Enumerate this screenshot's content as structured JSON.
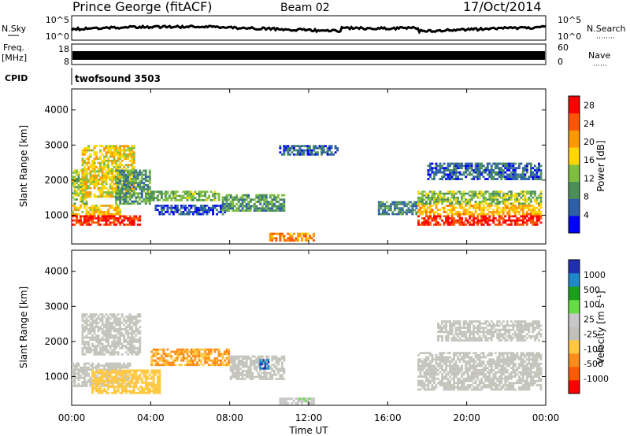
{
  "header": {
    "station": "Prince George (fitACF)",
    "beam": "Beam 02",
    "date": "17/Oct/2014"
  },
  "labels": {
    "nsky": "N.Sky",
    "nsearch": "N.Search",
    "freq": "Freq.",
    "freq_unit": "[MHz]",
    "nave": "Nave",
    "cpid": "CPID",
    "cpid_value": "twofsound 3503",
    "ylabel": "Slant Range [km]",
    "xlabel": "Time UT",
    "power_label": "Power [dB]",
    "velocity_label": "Velocity [m s⁻¹]"
  },
  "noise_panel": {
    "left_ticks": [
      "10^5",
      "10^0"
    ],
    "right_ticks": [
      "10^5",
      "10^0"
    ]
  },
  "freq_panel": {
    "left_ticks": [
      "18",
      "8"
    ],
    "right_ticks": [
      "60",
      "0"
    ]
  },
  "x_ticks": [
    "00:00",
    "04:00",
    "08:00",
    "12:00",
    "16:00",
    "20:00",
    "00:00"
  ],
  "colors": {
    "power": [
      "#0000ff",
      "#2d5fa8",
      "#4a8f5a",
      "#7fbf3f",
      "#ffd700",
      "#ff9900",
      "#ff5500",
      "#ff0000"
    ],
    "velocity": [
      "#ff0000",
      "#ff5a00",
      "#ff8c1a",
      "#ffc840",
      "#c0c0b8",
      "#c8c8c8",
      "#66dd44",
      "#1aa01a",
      "#1e88c8",
      "#2030b0"
    ],
    "ground_scatter": "#c4c4bc"
  },
  "chart_data": [
    {
      "panel": "power",
      "type": "heatmap",
      "xlabel": "Time UT",
      "ylabel": "Slant Range [km]",
      "xlim_hours": [
        0,
        24
      ],
      "ylim": [
        180,
        4600
      ],
      "y_ticks": [
        1000,
        2000,
        3000,
        4000
      ],
      "colorbar": {
        "label": "Power [dB]",
        "ticks": [
          4,
          8,
          12,
          16,
          20,
          24,
          28
        ],
        "range": [
          0,
          30
        ]
      },
      "regions": [
        {
          "t": [
            0.0,
            3.5
          ],
          "r": [
            700,
            1000
          ],
          "value": 27
        },
        {
          "t": [
            0.0,
            2.5
          ],
          "r": [
            1000,
            1300
          ],
          "value": 18
        },
        {
          "t": [
            0.0,
            0.8
          ],
          "r": [
            1300,
            2300
          ],
          "value": 14
        },
        {
          "t": [
            0.5,
            3.2
          ],
          "r": [
            1500,
            3000
          ],
          "value": 17
        },
        {
          "t": [
            2.2,
            4.0
          ],
          "r": [
            1300,
            2300
          ],
          "value": 10
        },
        {
          "t": [
            3.8,
            7.5
          ],
          "r": [
            1400,
            1700
          ],
          "value": 12
        },
        {
          "t": [
            4.2,
            7.8
          ],
          "r": [
            1000,
            1300
          ],
          "value": 5
        },
        {
          "t": [
            7.6,
            10.8
          ],
          "r": [
            1100,
            1600
          ],
          "value": 10
        },
        {
          "t": [
            10.0,
            12.3
          ],
          "r": [
            250,
            500
          ],
          "value": 22
        },
        {
          "t": [
            10.5,
            13.5
          ],
          "r": [
            2700,
            3000
          ],
          "value": 6
        },
        {
          "t": [
            15.5,
            17.5
          ],
          "r": [
            1000,
            1400
          ],
          "value": 8
        },
        {
          "t": [
            17.5,
            23.8
          ],
          "r": [
            1300,
            1700
          ],
          "value": 13
        },
        {
          "t": [
            17.5,
            23.8
          ],
          "r": [
            1000,
            1300
          ],
          "value": 19
        },
        {
          "t": [
            17.5,
            23.8
          ],
          "r": [
            700,
            1000
          ],
          "value": 27
        },
        {
          "t": [
            18.0,
            23.8
          ],
          "r": [
            2000,
            2500
          ],
          "value": 6
        }
      ]
    },
    {
      "panel": "velocity",
      "type": "heatmap",
      "xlabel": "Time UT",
      "ylabel": "Slant Range [km]",
      "xlim_hours": [
        0,
        24
      ],
      "ylim": [
        180,
        4600
      ],
      "y_ticks": [
        1000,
        2000,
        3000,
        4000
      ],
      "colorbar": {
        "label": "Velocity [m s⁻¹]",
        "ticks": [
          1000,
          500,
          100,
          25,
          -25,
          -100,
          -500,
          -1000
        ]
      },
      "regions": [
        {
          "t": [
            0.0,
            3.0
          ],
          "r": [
            700,
            1400
          ],
          "value": 0,
          "ground_scatter": true
        },
        {
          "t": [
            0.5,
            3.5
          ],
          "r": [
            1600,
            2800
          ],
          "value": 0,
          "ground_scatter": true
        },
        {
          "t": [
            1.0,
            4.5
          ],
          "r": [
            500,
            1200
          ],
          "value": -300
        },
        {
          "t": [
            4.0,
            8.0
          ],
          "r": [
            1300,
            1800
          ],
          "value": -400
        },
        {
          "t": [
            8.0,
            10.8
          ],
          "r": [
            900,
            1600
          ],
          "value": 0,
          "ground_scatter": true
        },
        {
          "t": [
            9.5,
            10.0
          ],
          "r": [
            1200,
            1500
          ],
          "value": 800
        },
        {
          "t": [
            10.5,
            12.3
          ],
          "r": [
            200,
            400
          ],
          "value": 120
        },
        {
          "t": [
            17.5,
            23.8
          ],
          "r": [
            600,
            1700
          ],
          "value": 0,
          "ground_scatter": true
        },
        {
          "t": [
            18.5,
            23.8
          ],
          "r": [
            2000,
            2600
          ],
          "value": 0,
          "ground_scatter": true
        }
      ]
    }
  ]
}
